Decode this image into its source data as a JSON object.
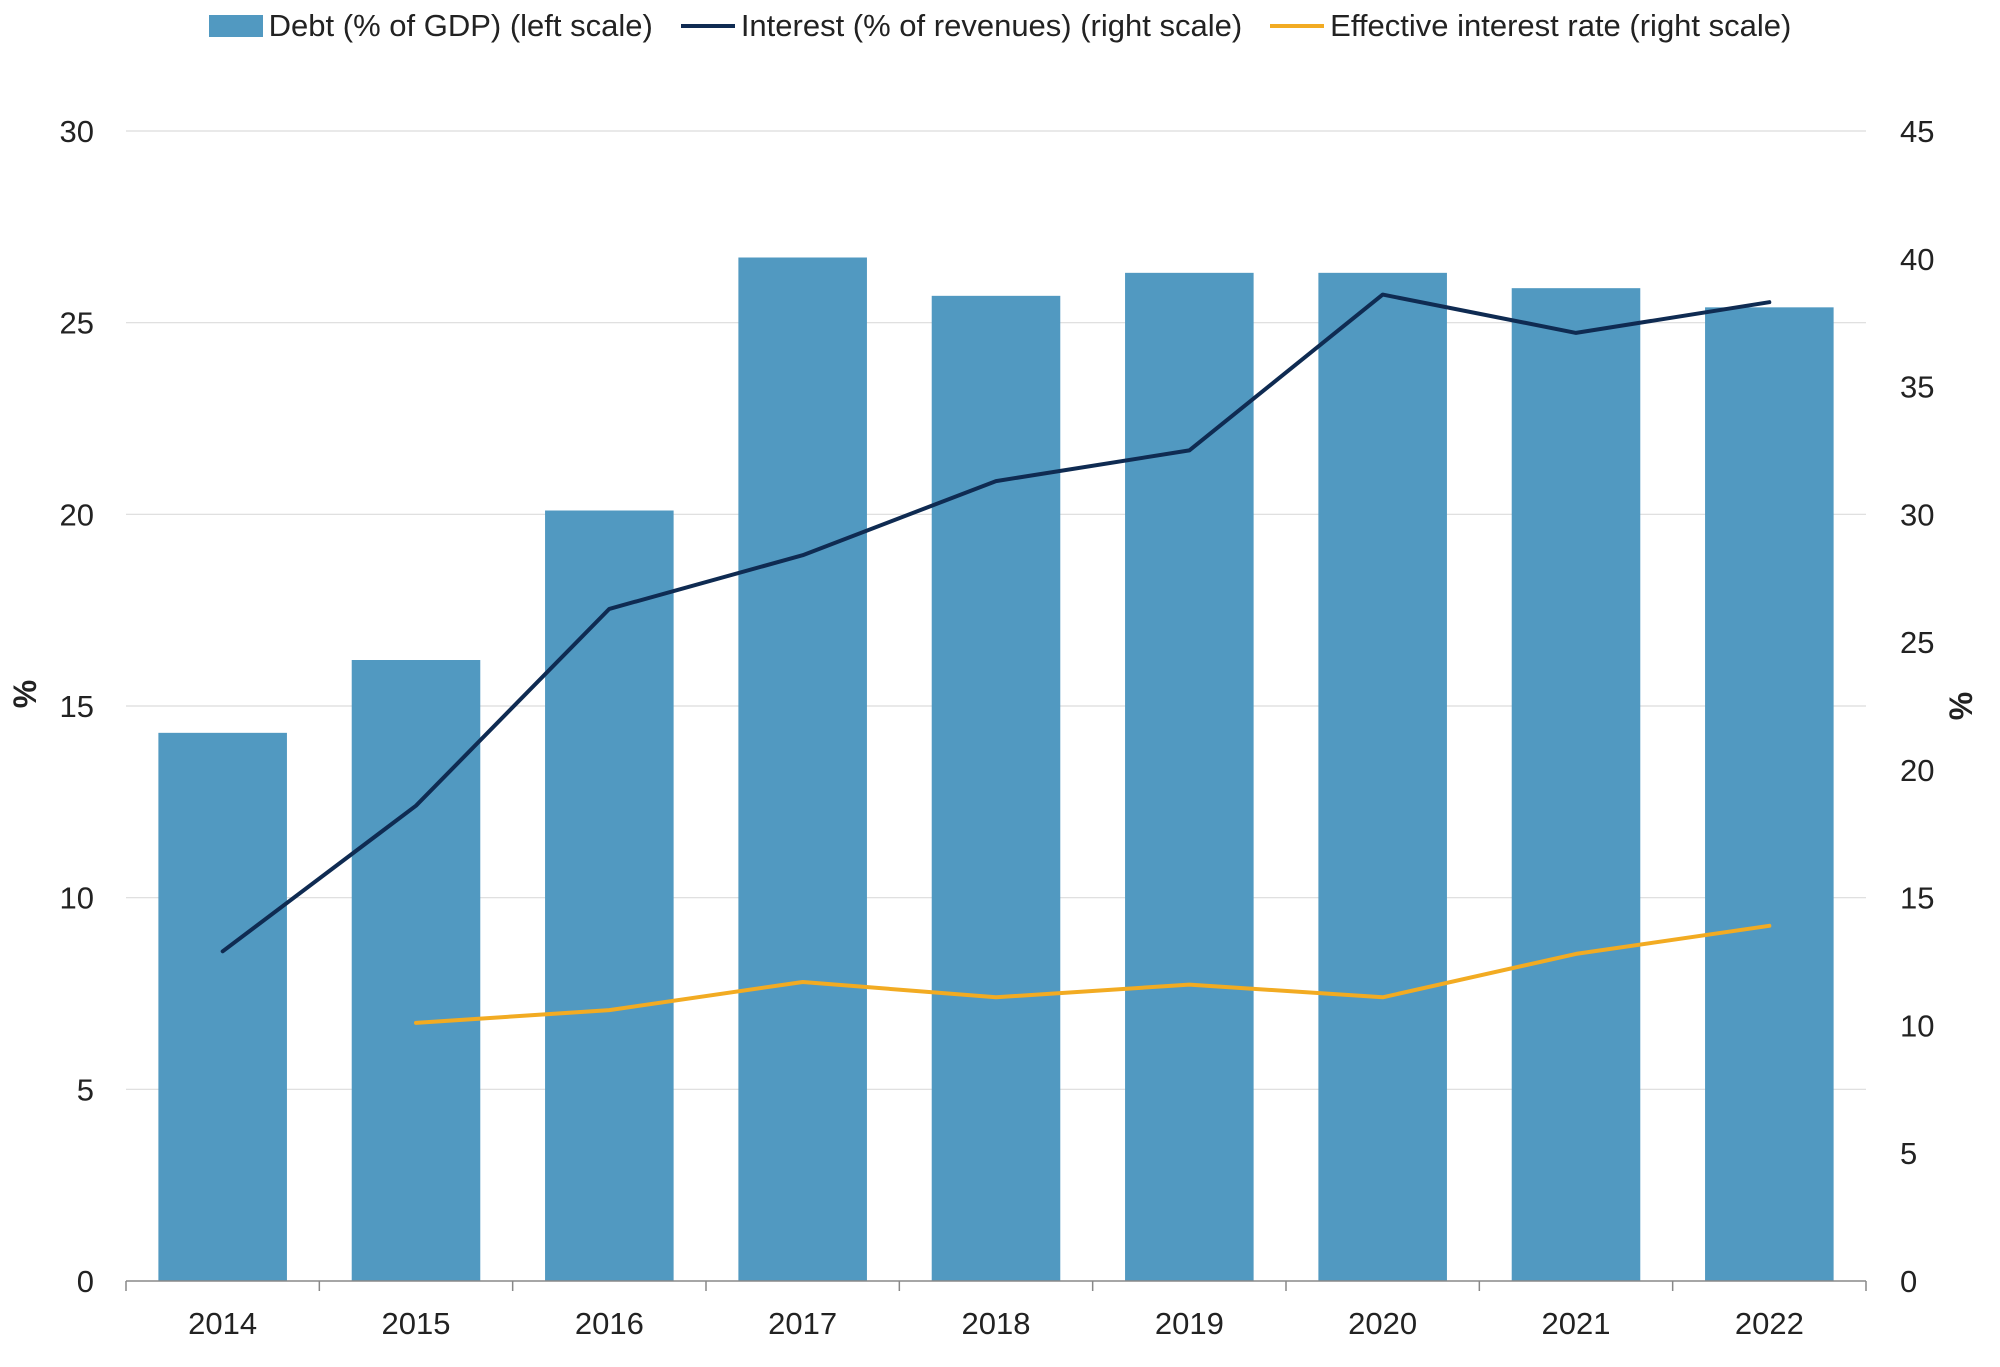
{
  "chart_data": {
    "type": "bar",
    "categories": [
      "2014",
      "2015",
      "2016",
      "2017",
      "2018",
      "2019",
      "2020",
      "2021",
      "2022"
    ],
    "series": [
      {
        "name": "Debt (% of GDP) (left scale)",
        "kind": "bar",
        "axis": "left",
        "color": "#5199c1",
        "values": [
          14.3,
          16.2,
          20.1,
          26.7,
          25.7,
          26.3,
          26.3,
          25.9,
          25.4
        ]
      },
      {
        "name": "Interest (% of revenues) (right scale)",
        "kind": "line",
        "axis": "right",
        "color": "#0f2b52",
        "values": [
          12.9,
          18.6,
          26.3,
          28.4,
          31.3,
          32.5,
          38.6,
          37.1,
          38.3
        ]
      },
      {
        "name": "Effective interest rate (right scale)",
        "kind": "line",
        "axis": "right",
        "color": "#f2ab22",
        "values": [
          null,
          10.1,
          10.6,
          11.7,
          11.1,
          11.6,
          11.1,
          12.8,
          13.9
        ]
      }
    ],
    "ylabel": "%",
    "ylabel_right": "%",
    "ylim": [
      0,
      30
    ],
    "ylim_right": [
      0,
      45
    ],
    "yticks": [
      "0",
      "5",
      "10",
      "15",
      "20",
      "25",
      "30"
    ],
    "yticks_right": [
      "0",
      "5",
      "10",
      "15",
      "20",
      "25",
      "30",
      "35",
      "40",
      "45"
    ],
    "grid": true,
    "legend_position": "top"
  }
}
